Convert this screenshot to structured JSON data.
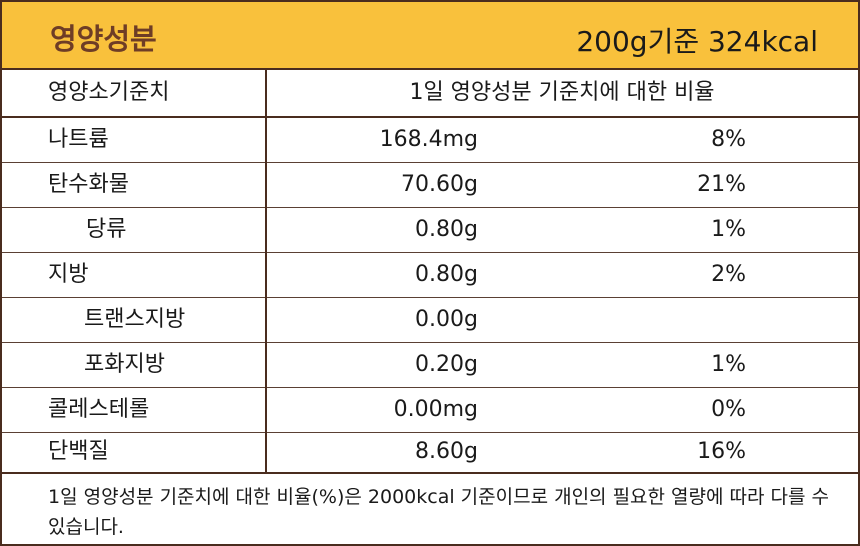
{
  "header": {
    "title": "영양성분",
    "basis": "200g기준 324kcal"
  },
  "columns": {
    "nutrient": "영양소기준치",
    "ratio": "1일 영양성분 기준치에 대한 비율"
  },
  "rows": [
    {
      "name": "나트륨",
      "amount": "168.4mg",
      "pct": "8%"
    },
    {
      "name": "탄수화물",
      "amount": "70.60g",
      "pct": "21%"
    },
    {
      "name": "당류",
      "amount": "0.80g",
      "pct": "1%"
    },
    {
      "name": "지방",
      "amount": "0.80g",
      "pct": "2%"
    },
    {
      "name": "트랜스지방",
      "amount": "0.00g",
      "pct": ""
    },
    {
      "name": "포화지방",
      "amount": "0.20g",
      "pct": "1%"
    },
    {
      "name": "콜레스테롤",
      "amount": "0.00mg",
      "pct": "0%"
    },
    {
      "name": "단백질",
      "amount": "8.60g",
      "pct": "16%"
    }
  ],
  "footnote": "1일 영양성분 기준치에 대한 비율(%)은 2000kcal 기준이므로 개인의 필요한 열량에 따라 다를 수 있습니다.",
  "colors": {
    "header_bg": "#f9c13c",
    "title": "#6e3d26",
    "border": "#4a2c1e"
  }
}
